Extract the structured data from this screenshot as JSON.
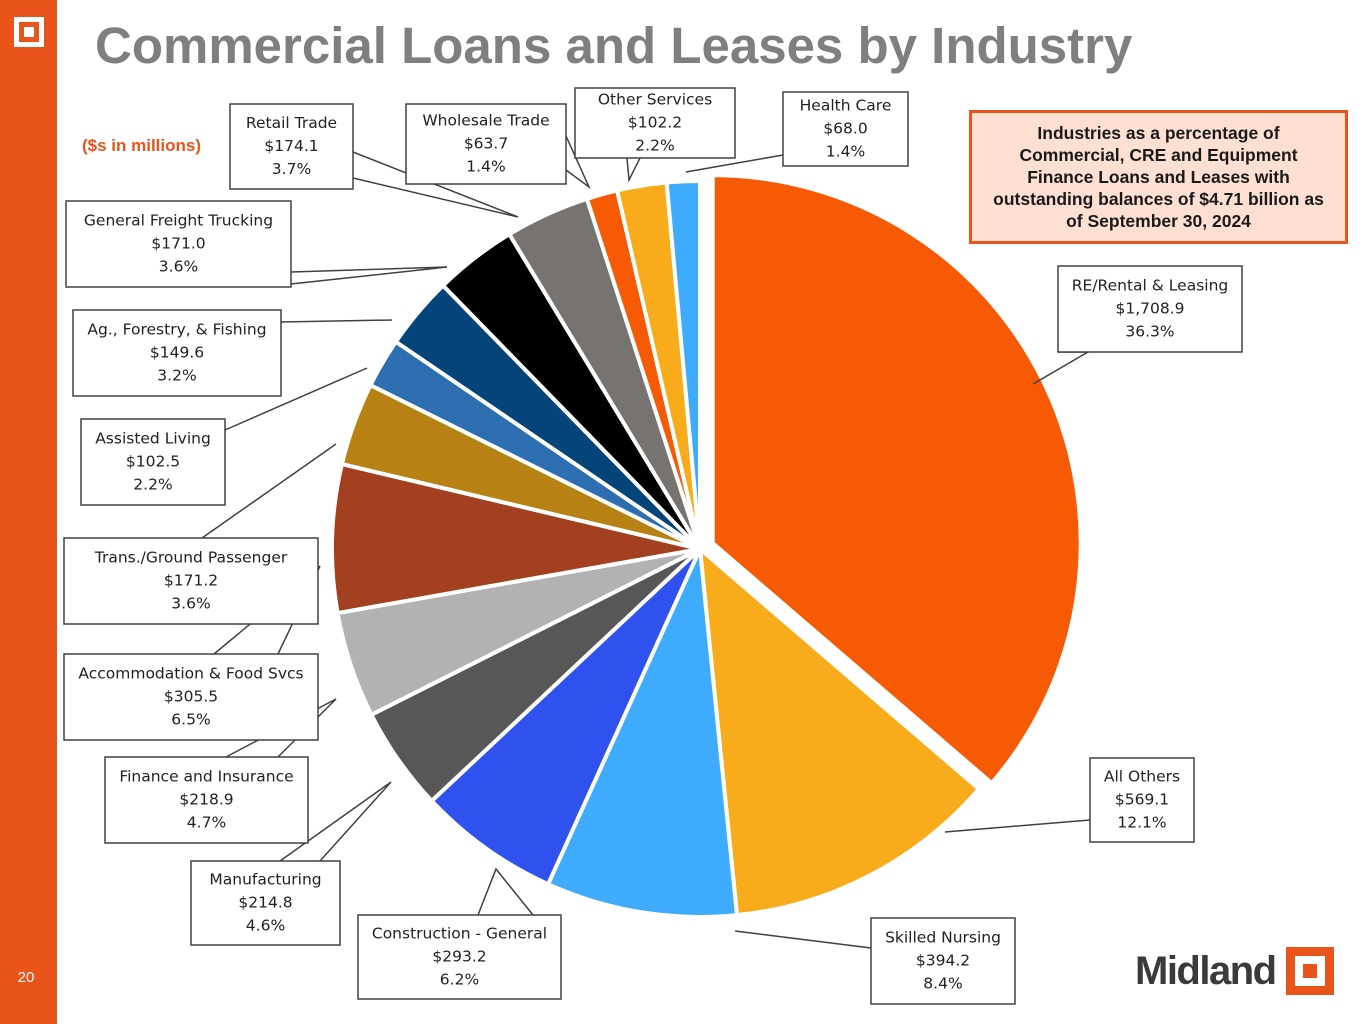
{
  "page": {
    "number": "20"
  },
  "title": "Commercial Loans and Leases by Industry",
  "units_note": "($s in millions)",
  "callout": "Industries as a percentage of Commercial, CRE and Equipment Finance Loans and Leases with outstanding balances of $4.71 billion as of September 30, 2024",
  "brand": {
    "name": "Midland"
  },
  "colors": {
    "accent": "#e8541a",
    "callout_bg": "#fde0d2",
    "title": "#7f7f7f"
  },
  "chart_data": {
    "type": "pie",
    "title": "",
    "unit": "$ millions",
    "slices": [
      {
        "name": "RE/Rental & Leasing",
        "value": 1708.9,
        "value_label": "$1,708.9",
        "percent_label": "36.3%",
        "color": "#f75a04",
        "exploded": true
      },
      {
        "name": "All Others",
        "value": 569.1,
        "value_label": "$569.1",
        "percent_label": "12.1%",
        "color": "#f8ac1c",
        "exploded": false
      },
      {
        "name": "Skilled Nursing",
        "value": 394.2,
        "value_label": "$394.2",
        "percent_label": "8.4%",
        "color": "#3eabfd",
        "exploded": false
      },
      {
        "name": "Construction - General",
        "value": 293.2,
        "value_label": "$293.2",
        "percent_label": "6.2%",
        "color": "#2f52ee",
        "exploded": false
      },
      {
        "name": "Manufacturing",
        "value": 214.8,
        "value_label": "$214.8",
        "percent_label": "4.6%",
        "color": "#575757",
        "exploded": false
      },
      {
        "name": "Finance and Insurance",
        "value": 218.9,
        "value_label": "$218.9",
        "percent_label": "4.7%",
        "color": "#b2b2b2",
        "exploded": false
      },
      {
        "name": "Accommodation & Food Svcs",
        "value": 305.5,
        "value_label": "$305.5",
        "percent_label": "6.5%",
        "color": "#a3401f",
        "exploded": false
      },
      {
        "name": "Trans./Ground Passenger",
        "value": 171.2,
        "value_label": "$171.2",
        "percent_label": "3.6%",
        "color": "#b88114",
        "exploded": false
      },
      {
        "name": "Assisted Living",
        "value": 102.5,
        "value_label": "$102.5",
        "percent_label": "2.2%",
        "color": "#2c6eb0",
        "exploded": false
      },
      {
        "name": "Ag., Forestry, & Fishing",
        "value": 149.6,
        "value_label": "$149.6",
        "percent_label": "3.2%",
        "color": "#044479",
        "exploded": false
      },
      {
        "name": "General Freight Trucking",
        "value": 171.0,
        "value_label": "$171.0",
        "percent_label": "3.6%",
        "color": "#000000",
        "exploded": false
      },
      {
        "name": "Retail Trade",
        "value": 174.1,
        "value_label": "$174.1",
        "percent_label": "3.7%",
        "color": "#777371",
        "exploded": false
      },
      {
        "name": "Wholesale Trade",
        "value": 63.7,
        "value_label": "$63.7",
        "percent_label": "1.4%",
        "color": "#f75a04",
        "exploded": false
      },
      {
        "name": "Other Services",
        "value": 102.2,
        "value_label": "$102.2",
        "percent_label": "2.2%",
        "color": "#f8ac1c",
        "exploded": false
      },
      {
        "name": "Health Care",
        "value": 68.0,
        "value_label": "$68.0",
        "percent_label": "1.4%",
        "color": "#3eabfd",
        "exploded": false
      }
    ]
  }
}
